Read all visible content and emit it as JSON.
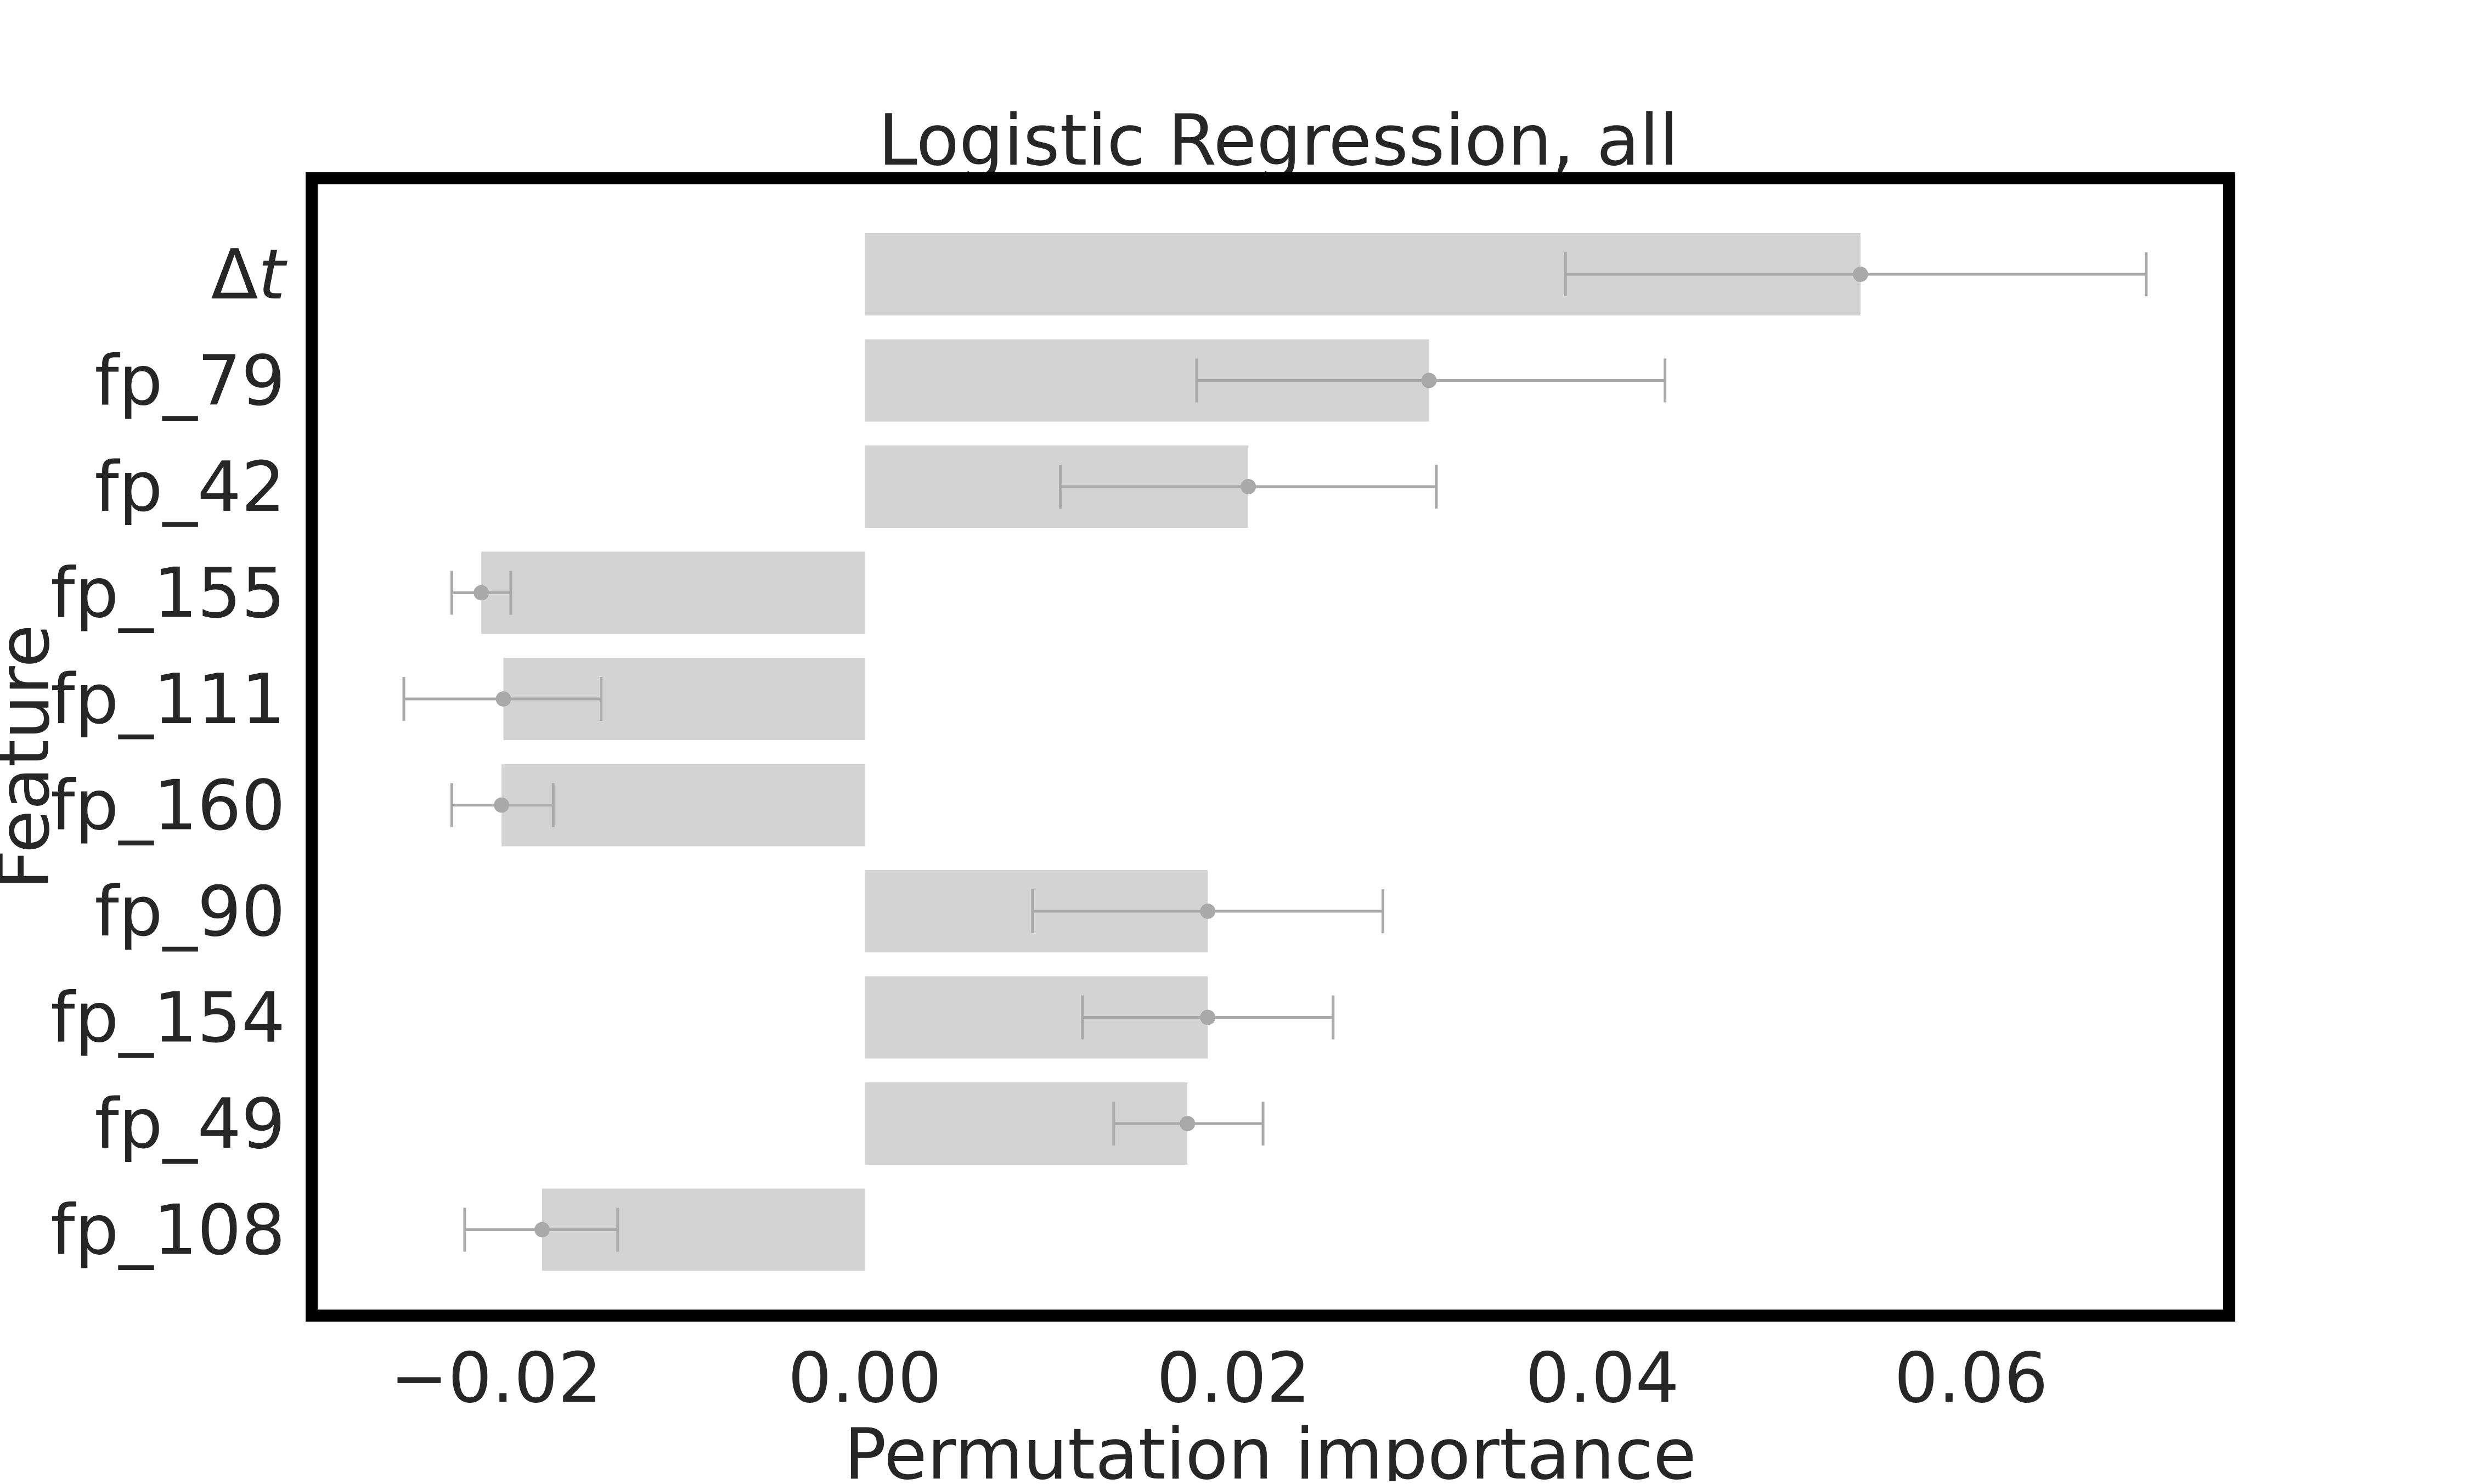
{
  "chart_data": {
    "type": "bar",
    "orientation": "horizontal",
    "title": "Logistic Regression, all",
    "xlabel": "Permutation importance",
    "ylabel": "Feature",
    "xlim": [
      -0.03,
      0.074
    ],
    "xticks": [
      -0.02,
      0.0,
      0.02,
      0.04,
      0.06
    ],
    "xtick_labels": [
      "−0.02",
      "0.00",
      "0.02",
      "0.04",
      "0.06"
    ],
    "grid": false,
    "categories": [
      "Δt",
      "fp_79",
      "fp_42",
      "fp_155",
      "fp_111",
      "fp_160",
      "fp_90",
      "fp_154",
      "fp_49",
      "fp_108"
    ],
    "values": [
      0.054,
      0.0306,
      0.0208,
      -0.0208,
      -0.0196,
      -0.0197,
      0.0186,
      0.0186,
      0.0175,
      -0.0175
    ],
    "error_low": [
      0.038,
      0.018,
      0.0106,
      -0.0224,
      -0.025,
      -0.0224,
      0.0091,
      0.0118,
      0.0135,
      -0.0217
    ],
    "error_high": [
      0.0695,
      0.0434,
      0.031,
      -0.0192,
      -0.0143,
      -0.0169,
      0.0281,
      0.0254,
      0.0216,
      -0.0134
    ],
    "bar_color": "#d3d3d3",
    "error_color": "#a9a9a9",
    "frame_color": "#000000"
  }
}
